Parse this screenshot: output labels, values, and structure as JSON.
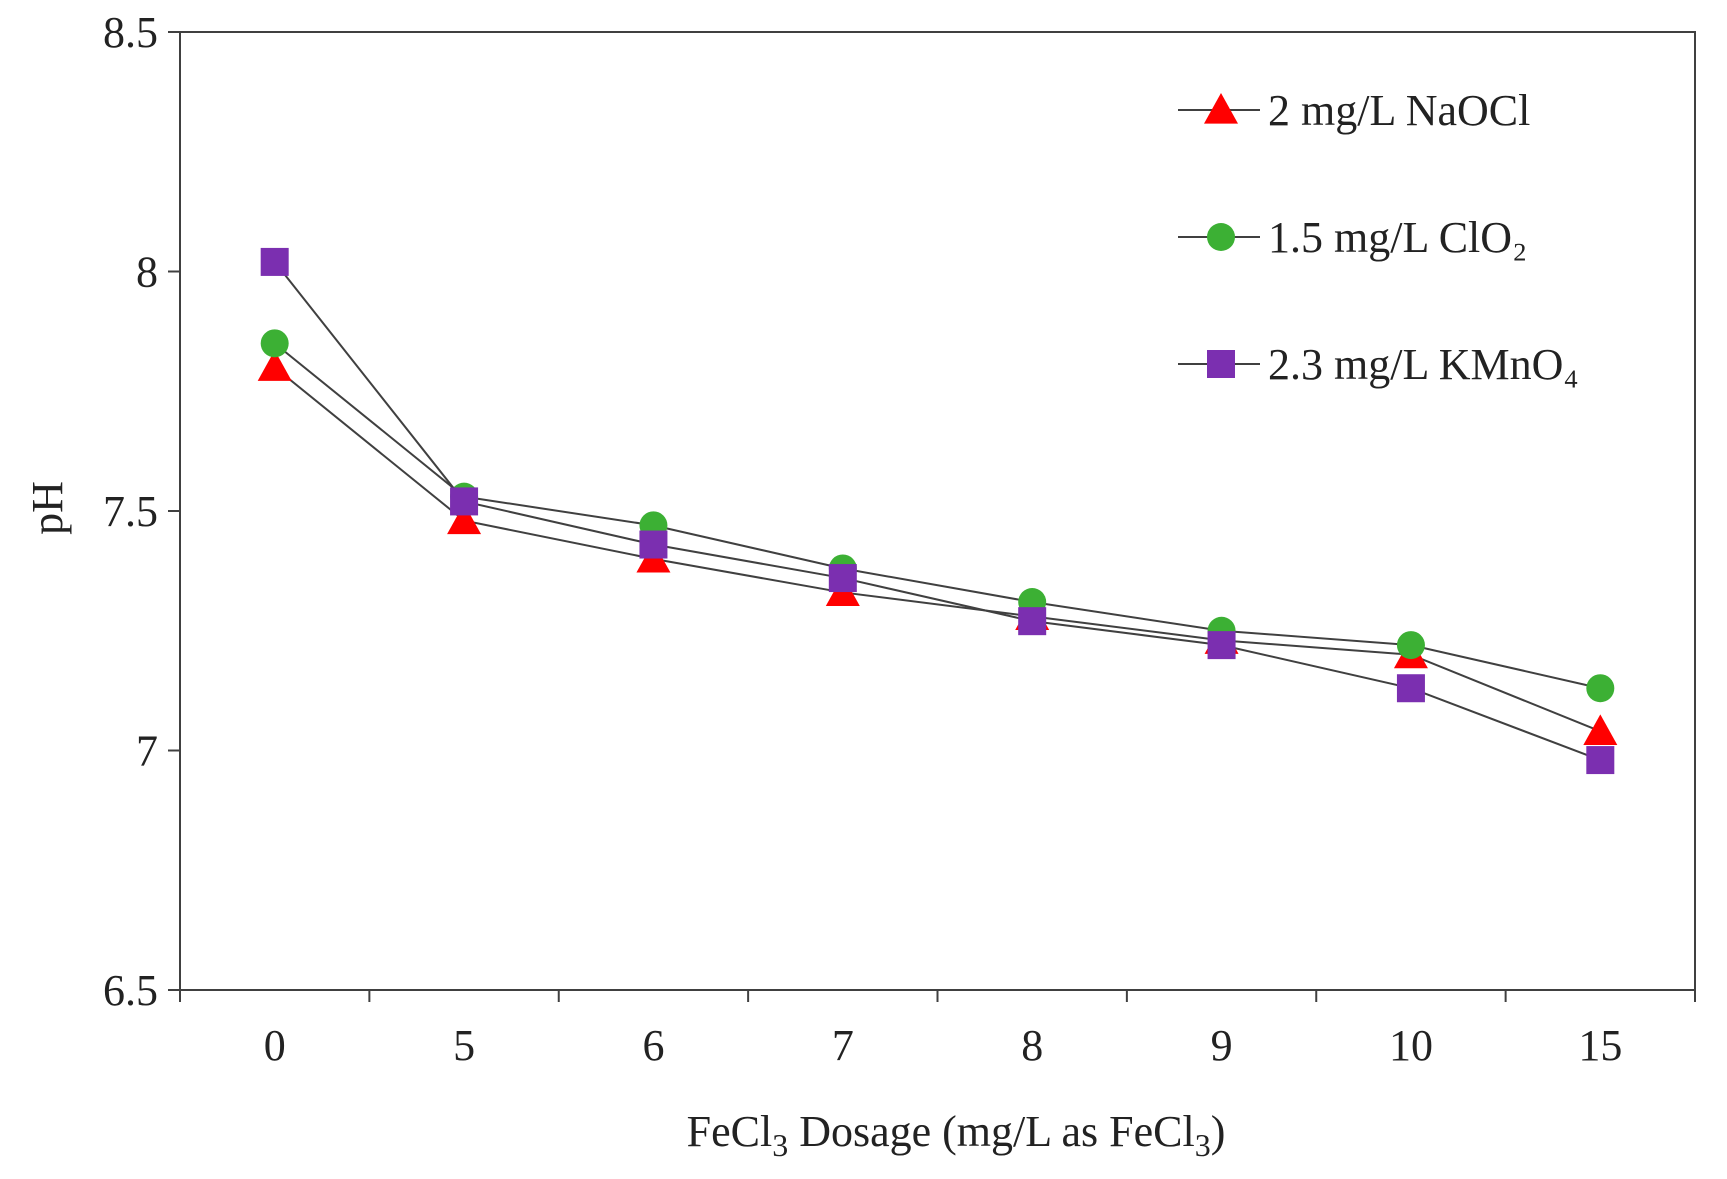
{
  "chart_data": {
    "type": "line",
    "title": "",
    "categories": [
      "0",
      "5",
      "6",
      "7",
      "8",
      "9",
      "10",
      "15"
    ],
    "xlabel": "FeCl3 Dosage (mg/L as FeCl3)",
    "xlabel_parts": {
      "a": "FeCl",
      "a_sub": "3",
      "b": " Dosage (mg/L as FeCl",
      "b_sub": "3",
      "c": ")"
    },
    "ylabel": "pH",
    "ylim": [
      6.5,
      8.5
    ],
    "yticks": [
      "6.5",
      "7",
      "7.5",
      "8",
      "8.5"
    ],
    "ytick_values": [
      6.5,
      7,
      7.5,
      8,
      8.5
    ],
    "grid": false,
    "legend_position": "top-right",
    "series": [
      {
        "name": "2 mg/L NaOCl",
        "marker": "triangle",
        "color": "#ff0000",
        "values": [
          7.8,
          7.48,
          7.4,
          7.33,
          7.28,
          7.23,
          7.2,
          7.04
        ]
      },
      {
        "name": "1.5 mg/L ClO₂",
        "marker": "circle",
        "color": "#3cb034",
        "values": [
          7.85,
          7.53,
          7.47,
          7.38,
          7.31,
          7.25,
          7.22,
          7.13
        ]
      },
      {
        "name": "2.3 mg/L KMnO₄",
        "marker": "square",
        "color": "#7b2fb0",
        "values": [
          8.02,
          7.52,
          7.43,
          7.36,
          7.27,
          7.22,
          7.13,
          6.98
        ]
      }
    ],
    "line_color": "#404040",
    "axis_color": "#404040"
  }
}
